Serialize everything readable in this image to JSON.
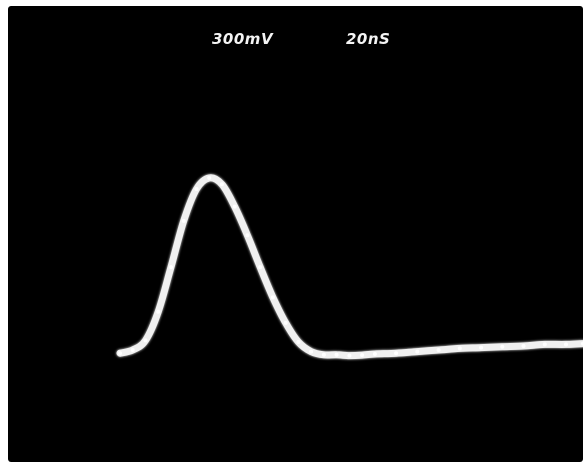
{
  "readouts": {
    "volts_per_div": "300mV",
    "time_per_div": "20nS"
  },
  "chart_data": {
    "type": "line",
    "title": "",
    "xlabel": "",
    "ylabel": "",
    "x_unit": "nS",
    "y_unit": "mV",
    "x_scale_per_div": 20,
    "y_scale_per_div": 300,
    "grid": false,
    "series": [
      {
        "color": "#f0f0f0",
        "x": [
          0,
          6,
          12,
          18,
          24,
          30,
          36,
          42,
          48,
          54,
          60,
          66,
          72,
          78,
          84,
          90,
          96,
          102,
          108,
          114,
          120,
          130,
          140,
          150,
          160,
          170,
          180,
          190,
          200,
          210,
          218
        ],
        "y": [
          0,
          20,
          80,
          260,
          540,
          830,
          1030,
          1100,
          1060,
          920,
          740,
          540,
          350,
          190,
          70,
          10,
          -10,
          -10,
          -15,
          -12,
          -5,
          0,
          10,
          20,
          30,
          35,
          40,
          45,
          55,
          55,
          60
        ]
      }
    ],
    "xlim": [
      0,
      218
    ],
    "ylim": [
      -300,
      1300
    ]
  }
}
